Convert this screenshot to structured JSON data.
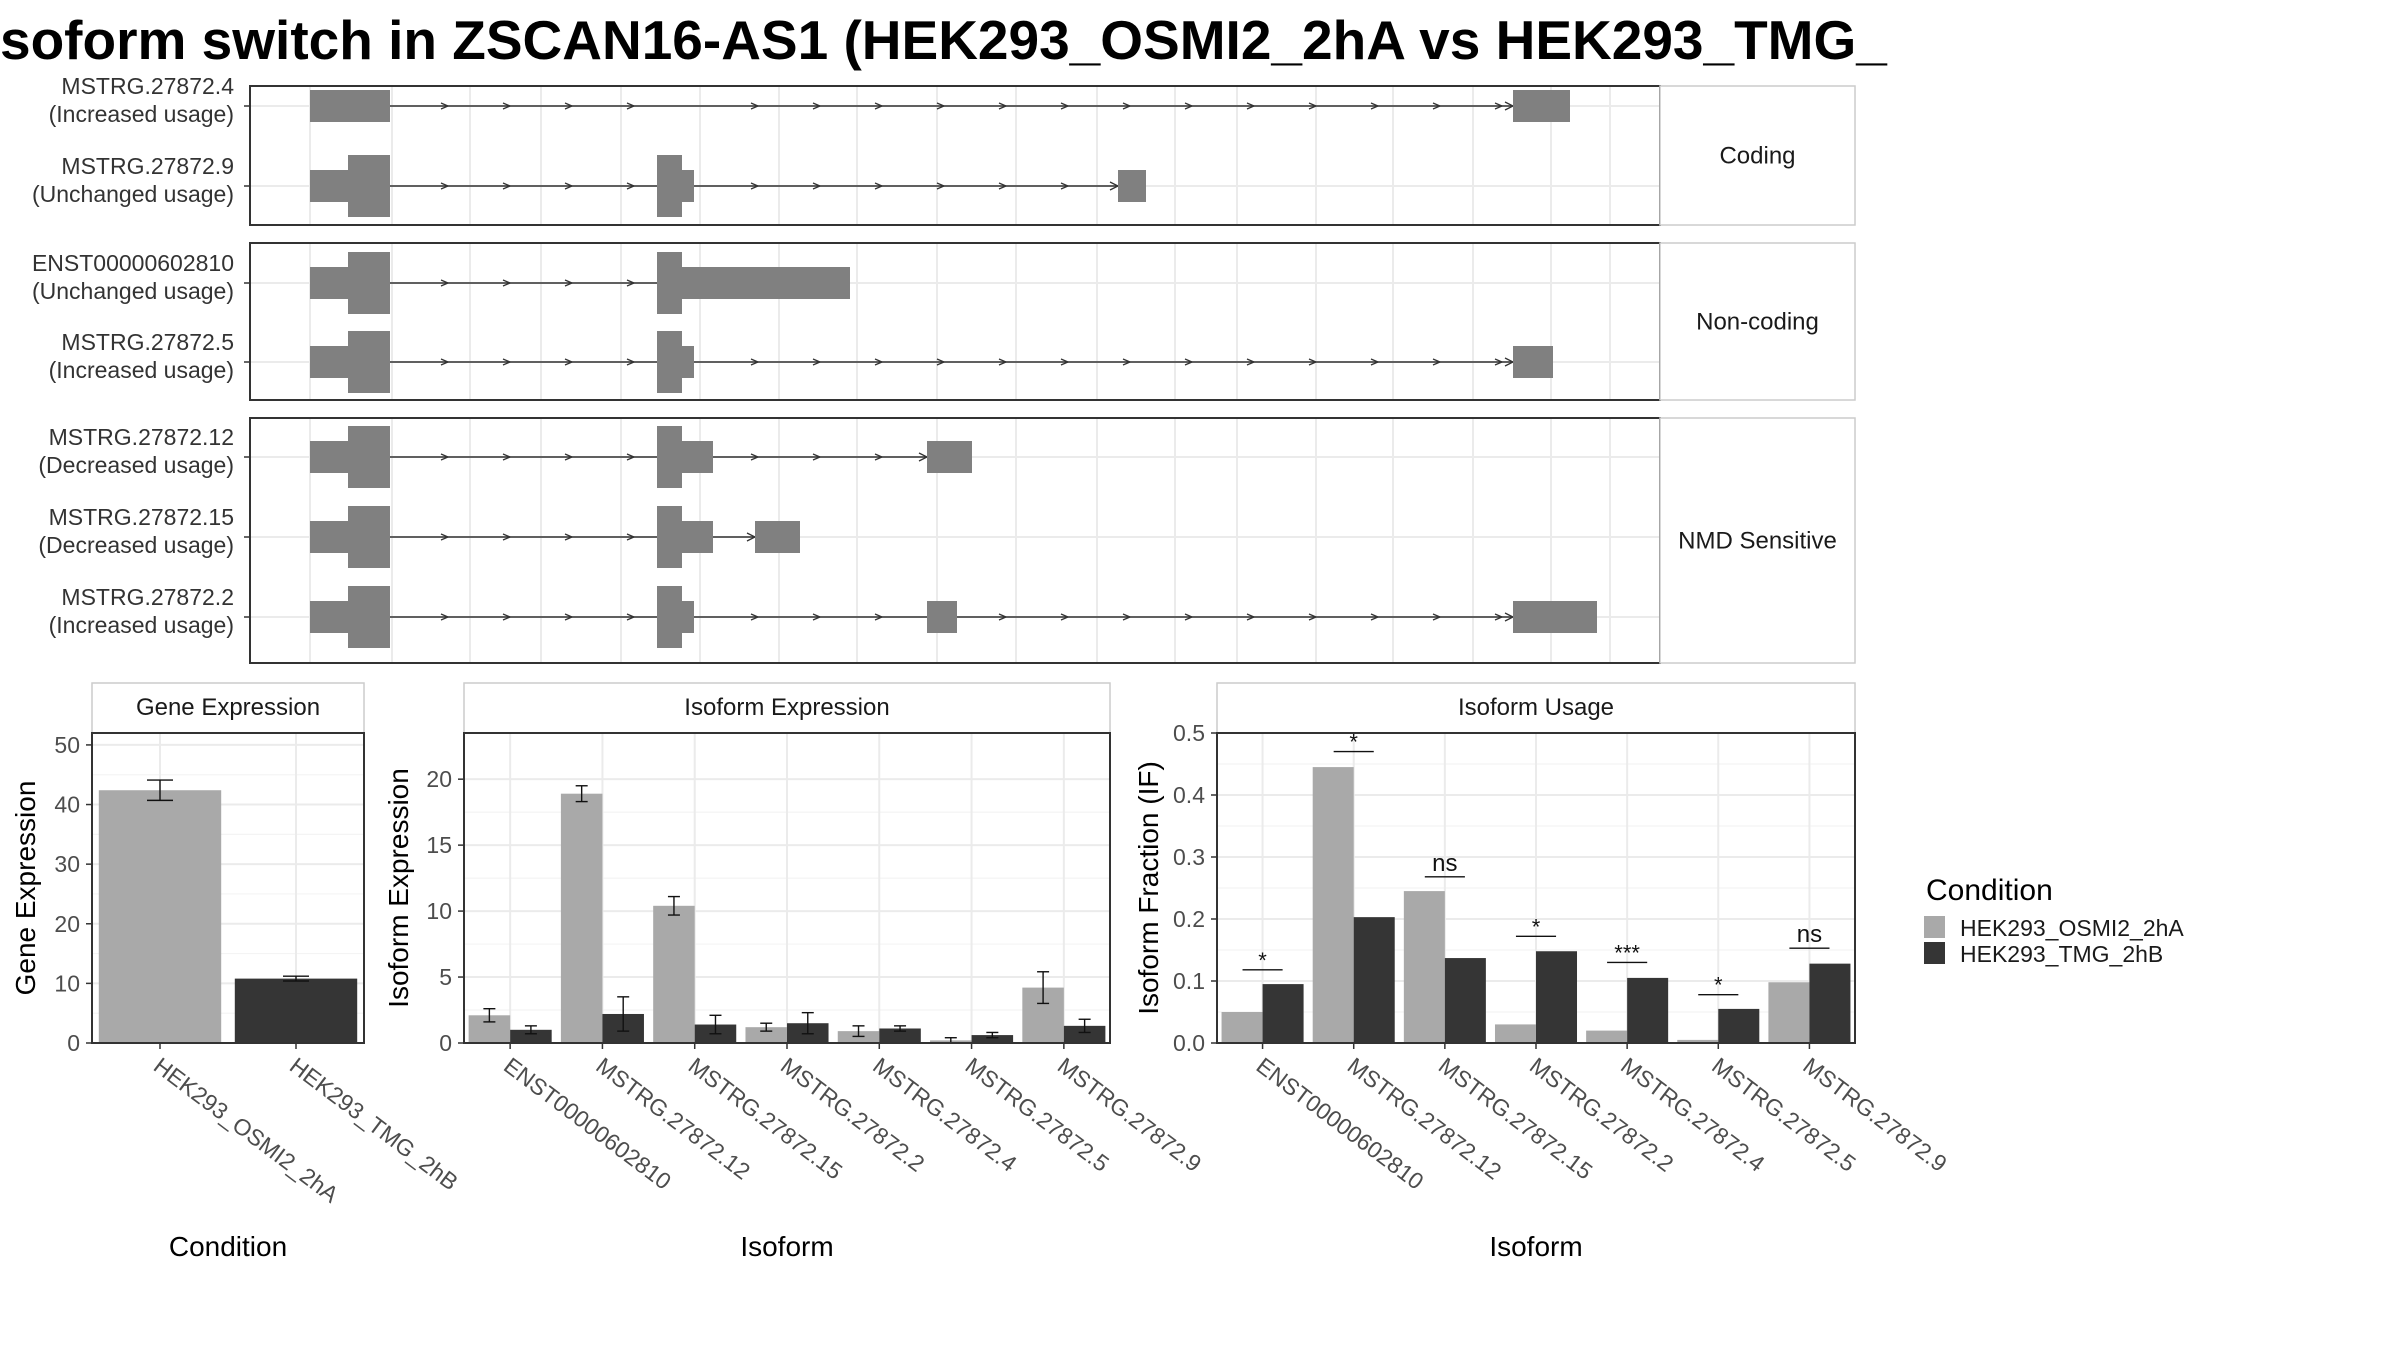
{
  "title": "soform switch in ZSCAN16-AS1 (HEK293_OSMI2_2hA vs HEK293_TMG_",
  "colors": {
    "cond_a": "#a9a9a9",
    "cond_b": "#353535",
    "transcript": "#808080",
    "grid": "#ebebeb",
    "panel_border": "#333333"
  },
  "structure": {
    "groups": [
      {
        "label": "Coding",
        "transcripts": [
          {
            "name": "MSTRG.27872.4",
            "usage": "(Increased usage)"
          },
          {
            "name": "MSTRG.27872.9",
            "usage": "(Unchanged usage)"
          }
        ]
      },
      {
        "label": "Non-coding",
        "transcripts": [
          {
            "name": "ENST00000602810",
            "usage": "(Unchanged usage)"
          },
          {
            "name": "MSTRG.27872.5",
            "usage": "(Increased usage)"
          }
        ]
      },
      {
        "label": "NMD Sensitive",
        "transcripts": [
          {
            "name": "MSTRG.27872.12",
            "usage": "(Decreased usage)"
          },
          {
            "name": "MSTRG.27872.15",
            "usage": "(Decreased usage)"
          },
          {
            "name": "MSTRG.27872.2",
            "usage": "(Increased usage)"
          }
        ]
      }
    ]
  },
  "legend": {
    "title": "Condition",
    "items": [
      "HEK293_OSMI2_2hA",
      "HEK293_TMG_2hB"
    ]
  },
  "chart_data": [
    {
      "type": "bar",
      "title": "Gene Expression",
      "xlabel": "Condition",
      "ylabel": "Gene Expression",
      "ylim": [
        0,
        52
      ],
      "yticks": [
        0,
        10,
        20,
        30,
        40,
        50
      ],
      "categories": [
        "HEK293_OSMI2_2hA",
        "HEK293_TMG_2hB"
      ],
      "values": [
        42.4,
        10.8
      ],
      "errors": [
        1.7,
        0.4
      ],
      "bar_conditions": [
        0,
        1
      ]
    },
    {
      "type": "bar",
      "title": "Isoform Expression",
      "xlabel": "Isoform",
      "ylabel": "Isoform Expression",
      "ylim": [
        0,
        23.5
      ],
      "yticks": [
        0,
        5,
        10,
        15,
        20
      ],
      "categories": [
        "ENST00000602810",
        "MSTRG.27872.12",
        "MSTRG.27872.15",
        "MSTRG.27872.2",
        "MSTRG.27872.4",
        "MSTRG.27872.5",
        "MSTRG.27872.9"
      ],
      "series": [
        {
          "name": "HEK293_OSMI2_2hA",
          "values": [
            2.1,
            18.9,
            10.4,
            1.2,
            0.9,
            0.2,
            4.2
          ],
          "errors": [
            0.5,
            0.6,
            0.7,
            0.3,
            0.4,
            0.2,
            1.2
          ]
        },
        {
          "name": "HEK293_TMG_2hB",
          "values": [
            1.0,
            2.2,
            1.4,
            1.5,
            1.1,
            0.6,
            1.3
          ],
          "errors": [
            0.3,
            1.3,
            0.7,
            0.8,
            0.2,
            0.2,
            0.5
          ]
        }
      ]
    },
    {
      "type": "bar",
      "title": "Isoform Usage",
      "xlabel": "Isoform",
      "ylabel": "Isoform Fraction (IF)",
      "ylim": [
        0,
        0.5
      ],
      "yticks": [
        "0.0",
        "0.1",
        "0.2",
        "0.3",
        "0.4",
        "0.5"
      ],
      "categories": [
        "ENST00000602810",
        "MSTRG.27872.12",
        "MSTRG.27872.15",
        "MSTRG.27872.2",
        "MSTRG.27872.4",
        "MSTRG.27872.5",
        "MSTRG.27872.9"
      ],
      "series": [
        {
          "name": "HEK293_OSMI2_2hA",
          "values": [
            0.05,
            0.445,
            0.245,
            0.03,
            0.02,
            0.005,
            0.098
          ]
        },
        {
          "name": "HEK293_TMG_2hB",
          "values": [
            0.095,
            0.203,
            0.137,
            0.148,
            0.105,
            0.055,
            0.128
          ]
        }
      ],
      "significance": [
        "*",
        "*",
        "ns",
        "*",
        "***",
        "*",
        "ns"
      ],
      "significance_y": [
        0.118,
        0.47,
        0.268,
        0.172,
        0.13,
        0.078,
        0.153
      ]
    }
  ]
}
